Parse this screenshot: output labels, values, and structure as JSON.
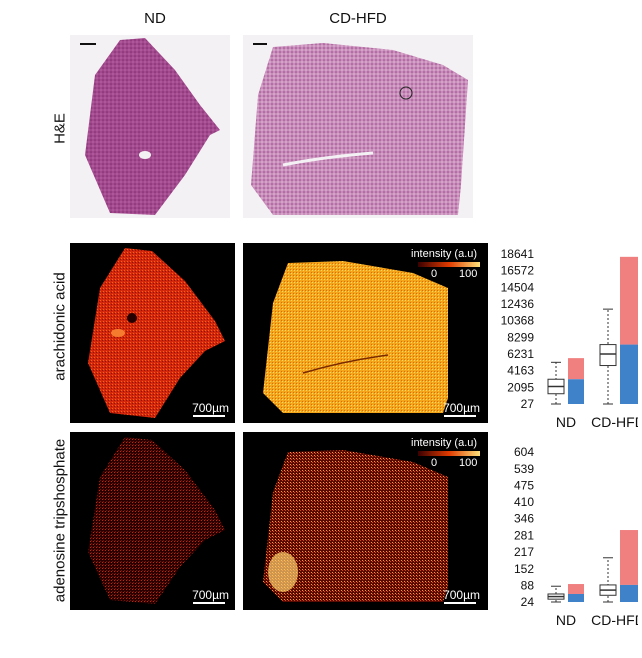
{
  "columns": [
    "ND",
    "CD-HFD"
  ],
  "rows": [
    "H&E",
    "arachidonic acid",
    "adenosine tripshosphate"
  ],
  "scale_bar_label": "700µm",
  "legend": {
    "title": "intensity (a.u)",
    "min": "0",
    "max": "100"
  },
  "colors": {
    "he_tissue": "#9a3f86",
    "he_light": "#c993bc",
    "heat_low": "#3a0000",
    "heat_mid": "#e03a00",
    "heat_high": "#ffe27a",
    "box_red": "#f08080",
    "box_blue": "#3f82c9"
  },
  "chart_data": [
    {
      "type": "box",
      "name": "arachidonic acid",
      "categories": [
        "ND",
        "CD-HFD"
      ],
      "yticks": [
        "18641",
        "16572",
        "14504",
        "12436",
        "10368",
        "8299",
        "6231",
        "4163",
        "2095",
        "27"
      ],
      "ylim": [
        27,
        18641
      ],
      "stats": [
        {
          "category": "ND",
          "min": 27,
          "q1": 1300,
          "median": 2200,
          "q3": 3100,
          "max": 5200
        },
        {
          "category": "CD-HFD",
          "min": 27,
          "q1": 4800,
          "median": 6231,
          "q3": 7400,
          "max": 11800
        }
      ]
    },
    {
      "type": "box",
      "name": "adenosine tripshosphate",
      "categories": [
        "ND",
        "CD-HFD"
      ],
      "yticks": [
        "604",
        "539",
        "475",
        "410",
        "346",
        "281",
        "217",
        "152",
        "88",
        "24"
      ],
      "ylim": [
        24,
        604
      ],
      "stats": [
        {
          "category": "ND",
          "min": 24,
          "q1": 35,
          "median": 45,
          "q3": 55,
          "max": 85
        },
        {
          "category": "CD-HFD",
          "min": 24,
          "q1": 50,
          "median": 70,
          "q3": 90,
          "max": 195
        }
      ]
    }
  ]
}
